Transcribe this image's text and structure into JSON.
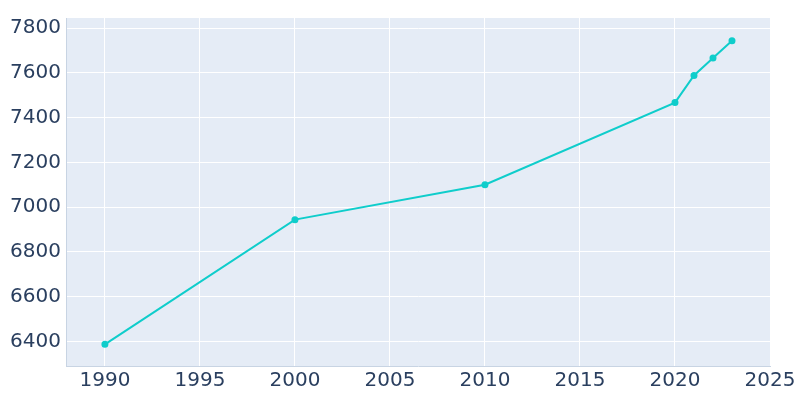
{
  "chart_data": {
    "type": "line",
    "x": [
      1990,
      2000,
      2010,
      2020,
      2021,
      2022,
      2023
    ],
    "values": [
      6387,
      6944,
      7100,
      7467,
      7588,
      7666,
      7743
    ],
    "color": "#0fcdcb",
    "marker": "circle",
    "xlim": [
      1988,
      2025
    ],
    "xticks": [
      1990,
      1995,
      2000,
      2005,
      2010,
      2015,
      2020,
      2025
    ],
    "ylim": [
      6290,
      7845
    ],
    "yticks": [
      6400,
      6600,
      6800,
      7000,
      7200,
      7400,
      7600,
      7800
    ],
    "grid": true
  }
}
